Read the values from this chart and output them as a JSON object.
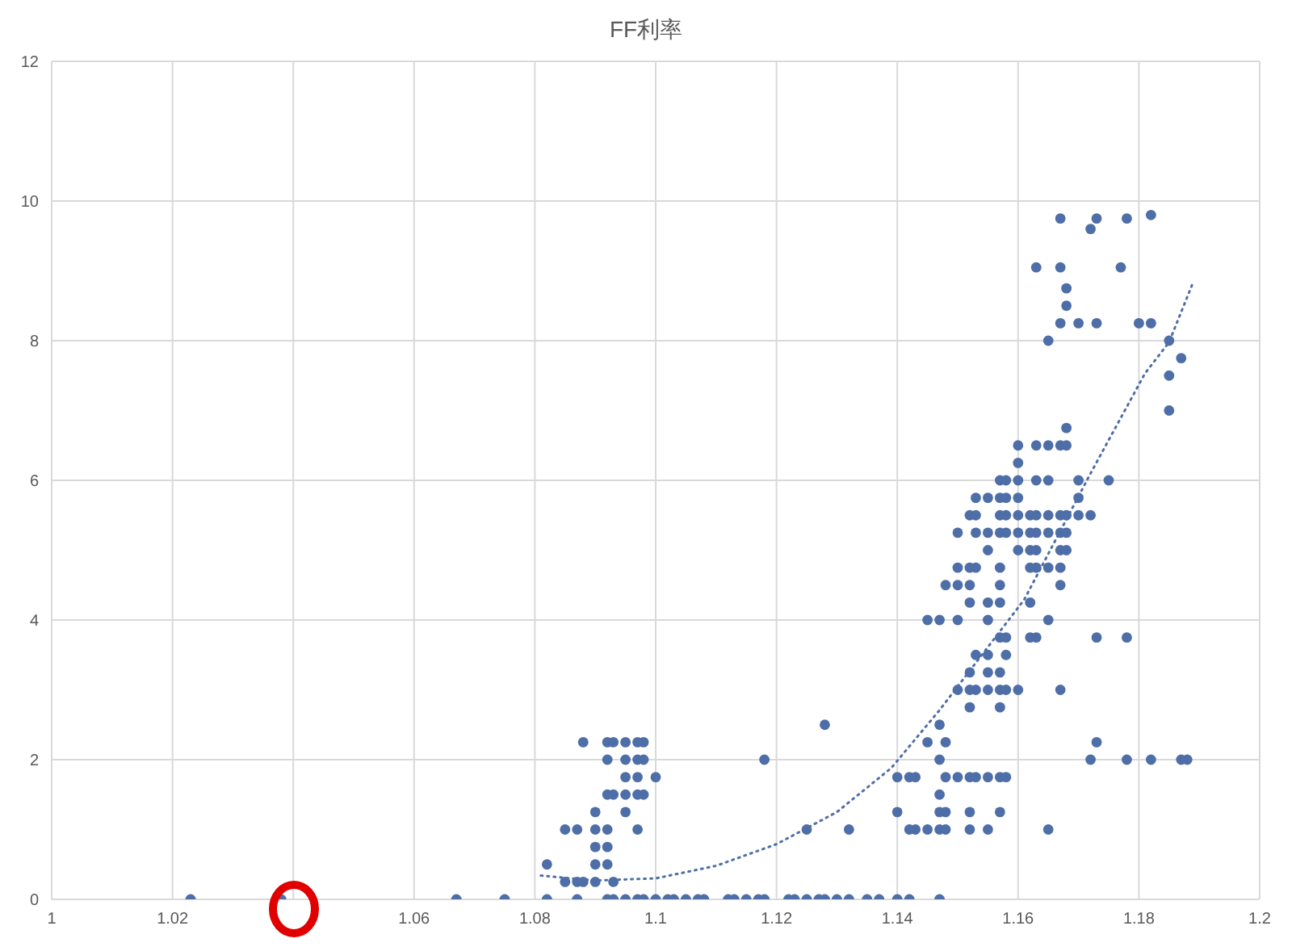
{
  "chart_data": {
    "type": "scatter",
    "title": "FF利率",
    "xlim": [
      1,
      1.2
    ],
    "xticks": [
      1,
      1.02,
      {
        "value": 1.04,
        "label": null
      },
      1.06,
      1.08,
      1.1,
      1.12,
      1.14,
      1.16,
      1.18,
      1.2
    ],
    "ylim": [
      0,
      12
    ],
    "yticks": [
      0,
      2,
      4,
      6,
      8,
      10,
      12
    ],
    "grid": true,
    "marker": "circle",
    "series": [
      {
        "color": "#4e6ea8",
        "x": [
          1.023,
          1.038,
          1.067,
          1.075,
          1.082,
          1.087,
          1.092,
          1.093,
          1.095,
          1.097,
          1.098,
          1.1,
          1.102,
          1.103,
          1.105,
          1.107,
          1.108,
          1.112,
          1.113,
          1.115,
          1.117,
          1.118,
          1.122,
          1.123,
          1.125,
          1.127,
          1.128,
          1.13,
          1.132,
          1.135,
          1.137,
          1.14,
          1.142,
          1.147,
          1.085,
          1.087,
          1.088,
          1.09,
          1.093,
          1.082,
          1.09,
          1.092,
          1.09,
          1.092,
          1.085,
          1.087,
          1.09,
          1.092,
          1.097,
          1.125,
          1.132,
          1.142,
          1.143,
          1.145,
          1.147,
          1.148,
          1.152,
          1.155,
          1.165,
          1.09,
          1.095,
          1.14,
          1.147,
          1.148,
          1.152,
          1.157,
          1.092,
          1.093,
          1.095,
          1.097,
          1.098,
          1.147,
          1.095,
          1.097,
          1.1,
          1.14,
          1.142,
          1.143,
          1.148,
          1.15,
          1.152,
          1.153,
          1.155,
          1.157,
          1.158,
          1.092,
          1.095,
          1.097,
          1.098,
          1.118,
          1.147,
          1.172,
          1.178,
          1.182,
          1.187,
          1.188,
          1.088,
          1.092,
          1.093,
          1.095,
          1.097,
          1.098,
          1.145,
          1.148,
          1.173,
          1.128,
          1.147,
          1.152,
          1.157,
          1.15,
          1.152,
          1.153,
          1.155,
          1.157,
          1.158,
          1.16,
          1.167,
          1.152,
          1.155,
          1.157,
          1.153,
          1.155,
          1.158,
          1.157,
          1.158,
          1.162,
          1.163,
          1.173,
          1.178,
          1.145,
          1.147,
          1.15,
          1.155,
          1.165,
          1.152,
          1.155,
          1.157,
          1.162,
          1.148,
          1.15,
          1.152,
          1.157,
          1.167,
          1.15,
          1.152,
          1.153,
          1.157,
          1.162,
          1.163,
          1.165,
          1.167,
          1.155,
          1.16,
          1.162,
          1.163,
          1.167,
          1.168,
          1.15,
          1.153,
          1.155,
          1.157,
          1.158,
          1.16,
          1.162,
          1.163,
          1.165,
          1.167,
          1.168,
          1.152,
          1.153,
          1.157,
          1.158,
          1.16,
          1.162,
          1.163,
          1.165,
          1.167,
          1.168,
          1.17,
          1.172,
          1.153,
          1.155,
          1.157,
          1.158,
          1.16,
          1.17,
          1.157,
          1.158,
          1.16,
          1.163,
          1.165,
          1.17,
          1.175,
          1.16,
          1.16,
          1.163,
          1.165,
          1.167,
          1.168,
          1.168,
          1.185,
          1.185,
          1.187,
          1.165,
          1.185,
          1.167,
          1.17,
          1.173,
          1.18,
          1.182,
          1.168,
          1.168,
          1.163,
          1.167,
          1.177,
          1.172,
          1.167,
          1.173,
          1.178,
          1.182
        ],
        "values": [
          0,
          0,
          0,
          0,
          0,
          0,
          0,
          0,
          0,
          0,
          0,
          0,
          0,
          0,
          0,
          0,
          0,
          0,
          0,
          0,
          0,
          0,
          0,
          0,
          0,
          0,
          0,
          0,
          0,
          0,
          0,
          0,
          0,
          0,
          0.25,
          0.25,
          0.25,
          0.25,
          0.25,
          0.5,
          0.5,
          0.5,
          0.75,
          0.75,
          1,
          1,
          1,
          1,
          1,
          1,
          1,
          1,
          1,
          1,
          1,
          1,
          1,
          1,
          1,
          1.25,
          1.25,
          1.25,
          1.25,
          1.25,
          1.25,
          1.25,
          1.5,
          1.5,
          1.5,
          1.5,
          1.5,
          1.5,
          1.75,
          1.75,
          1.75,
          1.75,
          1.75,
          1.75,
          1.75,
          1.75,
          1.75,
          1.75,
          1.75,
          1.75,
          1.75,
          2,
          2,
          2,
          2,
          2,
          2,
          2,
          2,
          2,
          2,
          2,
          2.25,
          2.25,
          2.25,
          2.25,
          2.25,
          2.25,
          2.25,
          2.25,
          2.25,
          2.5,
          2.5,
          2.75,
          2.75,
          3,
          3,
          3,
          3,
          3,
          3,
          3,
          3,
          3.25,
          3.25,
          3.25,
          3.5,
          3.5,
          3.5,
          3.75,
          3.75,
          3.75,
          3.75,
          3.75,
          3.75,
          4,
          4,
          4,
          4,
          4,
          4.25,
          4.25,
          4.25,
          4.25,
          4.5,
          4.5,
          4.5,
          4.5,
          4.5,
          4.75,
          4.75,
          4.75,
          4.75,
          4.75,
          4.75,
          4.75,
          4.75,
          5,
          5,
          5,
          5,
          5,
          5,
          5.25,
          5.25,
          5.25,
          5.25,
          5.25,
          5.25,
          5.25,
          5.25,
          5.25,
          5.25,
          5.25,
          5.5,
          5.5,
          5.5,
          5.5,
          5.5,
          5.5,
          5.5,
          5.5,
          5.5,
          5.5,
          5.5,
          5.5,
          5.75,
          5.75,
          5.75,
          5.75,
          5.75,
          5.75,
          6,
          6,
          6,
          6,
          6,
          6,
          6,
          6.25,
          6.5,
          6.5,
          6.5,
          6.5,
          6.5,
          6.75,
          7,
          7.5,
          7.75,
          8,
          8,
          8.25,
          8.25,
          8.25,
          8.25,
          8.25,
          8.5,
          8.75,
          9.05,
          9.05,
          9.05,
          9.6,
          9.75,
          9.75,
          9.75,
          9.8
        ]
      },
      {
        "type": "line",
        "color": "#4e6ea8",
        "line_style": "dotted",
        "marker": "none",
        "x": [
          1.081,
          1.09,
          1.1,
          1.11,
          1.12,
          1.13,
          1.139,
          1.147,
          1.161,
          1.172,
          1.181,
          1.185,
          1.189
        ],
        "values": [
          0.34,
          0.27,
          0.3,
          0.48,
          0.79,
          1.25,
          1.88,
          2.71,
          4.29,
          6.1,
          7.53,
          7.98,
          8.84
        ]
      }
    ]
  }
}
